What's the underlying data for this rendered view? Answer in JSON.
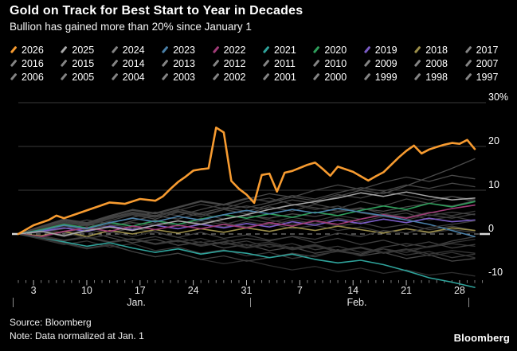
{
  "header": {
    "title": "Gold on Track for Best Start to Year in Decades",
    "subtitle": "Bullion has gained more than 20% since January 1"
  },
  "footer": {
    "source": "Source: Bloomberg",
    "note": "Note: Data normalized at Jan. 1",
    "brand": "Bloomberg"
  },
  "colors": {
    "background": "#000000",
    "text": "#ffffff",
    "grid": "#3a3a3a",
    "zero_line": "#999999",
    "axis_tick_minor": "#7d7d7d",
    "axis_tick_major": "#b5b5b5",
    "highlight": "#F79B30"
  },
  "legend": {
    "items": [
      {
        "label": "2026",
        "marker_color": "#F79B30"
      },
      {
        "label": "2025",
        "marker_color": "#A9A9A9"
      },
      {
        "label": "2024",
        "marker_color": "#848484"
      },
      {
        "label": "2023",
        "marker_color": "#4A80A8"
      },
      {
        "label": "2022",
        "marker_color": "#A13C78"
      },
      {
        "label": "2021",
        "marker_color": "#2FA39B"
      },
      {
        "label": "2020",
        "marker_color": "#2E9E5B"
      },
      {
        "label": "2019",
        "marker_color": "#7A5CC5"
      },
      {
        "label": "2018",
        "marker_color": "#9C8F4A"
      },
      {
        "label": "2017",
        "marker_color": "#848484"
      },
      {
        "label": "2016",
        "marker_color": "#848484"
      },
      {
        "label": "2015",
        "marker_color": "#848484"
      },
      {
        "label": "2014",
        "marker_color": "#848484"
      },
      {
        "label": "2013",
        "marker_color": "#848484"
      },
      {
        "label": "2012",
        "marker_color": "#848484"
      },
      {
        "label": "2011",
        "marker_color": "#848484"
      },
      {
        "label": "2010",
        "marker_color": "#848484"
      },
      {
        "label": "2009",
        "marker_color": "#848484"
      },
      {
        "label": "2008",
        "marker_color": "#848484"
      },
      {
        "label": "2007",
        "marker_color": "#848484"
      },
      {
        "label": "2006",
        "marker_color": "#848484"
      },
      {
        "label": "2005",
        "marker_color": "#848484"
      },
      {
        "label": "2004",
        "marker_color": "#848484"
      },
      {
        "label": "2003",
        "marker_color": "#848484"
      },
      {
        "label": "2002",
        "marker_color": "#848484"
      },
      {
        "label": "2001",
        "marker_color": "#848484"
      },
      {
        "label": "2000",
        "marker_color": "#848484"
      },
      {
        "label": "1999",
        "marker_color": "#848484"
      },
      {
        "label": "1998",
        "marker_color": "#848484"
      },
      {
        "label": "1997",
        "marker_color": "#848484"
      }
    ]
  },
  "chart_data": {
    "type": "line",
    "title": "Gold price change since Jan. 1, by year",
    "xlabel": "",
    "ylabel": "%",
    "note": "Data normalized at Jan. 1",
    "grid": true,
    "legend_position": "top",
    "y_axis": {
      "unit": "%",
      "range": [
        -13,
        30
      ],
      "ticks": [
        {
          "value": 30,
          "label": "30%"
        },
        {
          "value": 20,
          "label": "20"
        },
        {
          "value": 10,
          "label": "10"
        },
        {
          "value": 0,
          "label": "0"
        },
        {
          "value": -10,
          "label": "-10"
        }
      ]
    },
    "x_axis": {
      "unit": "day-of-year",
      "day_min": 1,
      "day_max": 61,
      "major_tick_days": [
        3,
        10,
        17,
        24,
        31,
        38,
        45,
        52,
        59
      ],
      "tick_labels": [
        "3",
        "10",
        "17",
        "24",
        "31",
        "7",
        "14",
        "21",
        "28"
      ],
      "month_labels": [
        {
          "label": "Jan.",
          "center_day": 16.5
        },
        {
          "label": "Feb.",
          "center_day": 45.5
        }
      ],
      "separator_days": [
        0.3,
        31.5,
        60.2
      ]
    },
    "x_default": [
      1,
      4,
      7,
      10,
      13,
      16,
      19,
      22,
      25,
      28,
      31,
      34,
      37,
      40,
      43,
      46,
      49,
      52,
      55,
      58,
      61
    ],
    "series": [
      {
        "name": "2026",
        "color": "#F79B30",
        "width": 2.6,
        "x": [
          1,
          3,
          5,
          6,
          7,
          9,
          11,
          13,
          15,
          17,
          19,
          20,
          21,
          22,
          23,
          24,
          25,
          26,
          27,
          28,
          29,
          30,
          31,
          32,
          33,
          34,
          35,
          36,
          37,
          39,
          40,
          41,
          42,
          43,
          45,
          47,
          48,
          49,
          51,
          52,
          53,
          54,
          55,
          56,
          57,
          58,
          59,
          60,
          61
        ],
        "values": [
          0,
          2.0,
          3.2,
          4.2,
          3.6,
          4.8,
          6.0,
          7.2,
          6.9,
          8.0,
          7.6,
          8.6,
          10.3,
          11.9,
          13.1,
          14.5,
          14.8,
          15.0,
          24.3,
          23.2,
          12.1,
          10.3,
          9.0,
          7.1,
          13.5,
          13.8,
          9.7,
          14.0,
          14.4,
          15.8,
          16.3,
          14.9,
          13.3,
          15.4,
          14.2,
          12.2,
          13.2,
          14.1,
          17.5,
          19.0,
          20.2,
          18.4,
          19.3,
          19.9,
          20.4,
          20.8,
          20.6,
          21.5,
          19.4
        ]
      },
      {
        "name": "2025",
        "color": "#A9A9A9",
        "width": 1.5,
        "values": [
          0,
          0.6,
          -0.4,
          0.8,
          1.6,
          0.8,
          2.0,
          3.0,
          2.2,
          3.4,
          4.4,
          5.6,
          6.6,
          7.4,
          8.2,
          9.4,
          8.6,
          9.6,
          8.6,
          7.8,
          8.2
        ]
      },
      {
        "name": "2024",
        "color": "#3f3f3f",
        "width": 1.3,
        "values": [
          0,
          -0.8,
          -1.5,
          -0.7,
          -1.8,
          -1.2,
          -2.2,
          -1.5,
          -2.5,
          -1.8,
          -1.0,
          -1.6,
          -0.5,
          -1.2,
          0.2,
          -0.6,
          0.8,
          0.2,
          1.5,
          2.2,
          3.0
        ]
      },
      {
        "name": "2023",
        "color": "#4A80A8",
        "width": 1.6,
        "values": [
          0,
          0.8,
          2.0,
          1.2,
          2.6,
          3.6,
          2.8,
          4.0,
          3.2,
          4.4,
          5.4,
          4.6,
          5.6,
          4.8,
          5.8,
          5.0,
          4.2,
          3.2,
          2.2,
          0.8,
          -0.6
        ]
      },
      {
        "name": "2022",
        "color": "#A13C78",
        "width": 1.6,
        "values": [
          0,
          -0.6,
          0.6,
          1.4,
          0.6,
          1.8,
          1.0,
          2.0,
          1.2,
          2.2,
          1.4,
          2.6,
          1.8,
          3.0,
          2.2,
          3.4,
          4.4,
          3.6,
          4.8,
          5.8,
          6.6
        ]
      },
      {
        "name": "2021",
        "color": "#2FA39B",
        "width": 1.6,
        "values": [
          0,
          -0.8,
          -1.8,
          -2.8,
          -2.0,
          -3.2,
          -4.2,
          -3.4,
          -4.6,
          -3.8,
          -4.4,
          -5.4,
          -4.6,
          -5.8,
          -6.6,
          -6.0,
          -7.0,
          -8.4,
          -10.0,
          -11.0,
          -12.2
        ]
      },
      {
        "name": "2020",
        "color": "#2E9E5B",
        "width": 1.6,
        "values": [
          0,
          1.0,
          2.2,
          1.4,
          2.6,
          1.8,
          3.0,
          2.2,
          3.4,
          4.4,
          3.6,
          4.6,
          3.8,
          5.0,
          4.2,
          5.4,
          6.4,
          5.6,
          7.0,
          6.2,
          7.4
        ]
      },
      {
        "name": "2019",
        "color": "#7A5CC5",
        "width": 1.6,
        "values": [
          0,
          0.6,
          1.4,
          0.6,
          1.8,
          1.0,
          2.0,
          1.2,
          2.2,
          1.4,
          2.4,
          1.6,
          2.8,
          2.0,
          3.2,
          2.4,
          3.4,
          2.6,
          3.6,
          2.8,
          3.2
        ]
      },
      {
        "name": "2018",
        "color": "#9C8F4A",
        "width": 1.6,
        "values": [
          0,
          -0.4,
          0.6,
          -0.6,
          0.8,
          0.0,
          1.0,
          0.2,
          1.2,
          0.4,
          1.4,
          0.6,
          1.6,
          0.8,
          1.8,
          1.0,
          0.2,
          1.2,
          0.4,
          1.4,
          0.8
        ]
      },
      {
        "name": "2017",
        "color": "#474747",
        "width": 1.3,
        "values": [
          0,
          0.7,
          1.4,
          0.8,
          1.8,
          2.6,
          2.0,
          3.0,
          2.4,
          3.4,
          4.2,
          3.6,
          4.6,
          4.0,
          5.0,
          5.8,
          5.2,
          6.2,
          7.0,
          6.4,
          7.6
        ]
      },
      {
        "name": "2016",
        "color": "#4a4a4a",
        "width": 1.3,
        "values": [
          0,
          0.4,
          1.2,
          2.2,
          1.6,
          3.0,
          4.2,
          3.4,
          4.8,
          6.0,
          5.2,
          6.6,
          7.8,
          7.0,
          8.6,
          10.0,
          9.2,
          11.0,
          13.0,
          15.0,
          17.2
        ]
      },
      {
        "name": "2015",
        "color": "#3c3c3c",
        "width": 1.3,
        "values": [
          0,
          1.2,
          2.6,
          1.8,
          3.4,
          4.6,
          3.8,
          5.4,
          6.8,
          5.8,
          7.4,
          8.2,
          6.8,
          5.6,
          6.4,
          4.8,
          4.0,
          4.8,
          3.2,
          4.0,
          3.0
        ]
      },
      {
        "name": "2014",
        "color": "#444444",
        "width": 1.3,
        "values": [
          0,
          0.8,
          2.0,
          3.2,
          2.4,
          3.8,
          5.0,
          4.2,
          5.6,
          6.8,
          6.0,
          7.2,
          8.4,
          7.6,
          9.0,
          8.2,
          9.6,
          8.8,
          7.8,
          8.6,
          7.4
        ]
      },
      {
        "name": "2013",
        "color": "#383838",
        "width": 1.3,
        "values": [
          0,
          -0.6,
          0.4,
          -1.0,
          -0.2,
          -1.4,
          -0.6,
          -1.8,
          -1.0,
          -2.4,
          -1.6,
          -3.0,
          -2.2,
          -3.6,
          -2.8,
          -4.2,
          -3.4,
          -4.8,
          -4.0,
          -5.4,
          -4.6
        ]
      },
      {
        "name": "2012",
        "color": "#424242",
        "width": 1.3,
        "values": [
          0,
          1.4,
          2.8,
          2.0,
          3.6,
          4.8,
          4.0,
          5.2,
          4.4,
          5.6,
          6.4,
          5.6,
          6.8,
          6.0,
          5.2,
          6.0,
          4.6,
          5.4,
          4.2,
          5.0,
          4.4
        ]
      },
      {
        "name": "2011",
        "color": "#363636",
        "width": 1.3,
        "values": [
          0,
          -1.2,
          -2.4,
          -1.6,
          -3.0,
          -2.2,
          -3.8,
          -3.0,
          -4.4,
          -3.6,
          -5.0,
          -4.2,
          -5.6,
          -4.8,
          -4.0,
          -4.8,
          -3.4,
          -4.2,
          -2.8,
          -2.0,
          -1.2
        ]
      },
      {
        "name": "2010",
        "color": "#404040",
        "width": 1.3,
        "values": [
          0,
          -0.8,
          -2.0,
          -3.2,
          -2.4,
          -4.0,
          -5.2,
          -4.4,
          -5.8,
          -5.0,
          -6.2,
          -5.4,
          -4.4,
          -5.2,
          -3.8,
          -4.6,
          -3.0,
          -2.2,
          -3.0,
          -1.6,
          -0.6
        ]
      },
      {
        "name": "2009",
        "color": "#484848",
        "width": 1.3,
        "values": [
          0,
          1.6,
          3.2,
          2.4,
          4.0,
          5.4,
          4.6,
          6.0,
          7.4,
          6.6,
          8.0,
          9.2,
          8.4,
          10.0,
          11.2,
          10.2,
          11.8,
          13.0,
          12.0,
          13.4,
          12.6
        ]
      },
      {
        "name": "2008",
        "color": "#454545",
        "width": 1.3,
        "values": [
          0,
          1.8,
          3.4,
          2.6,
          4.2,
          5.6,
          4.8,
          6.2,
          7.6,
          6.8,
          8.2,
          7.4,
          8.8,
          8.0,
          9.4,
          10.6,
          9.8,
          11.2,
          10.4,
          11.6,
          10.8
        ]
      },
      {
        "name": "2007",
        "color": "#3a3a3a",
        "width": 1.3,
        "values": [
          0,
          0.6,
          -0.4,
          0.8,
          1.6,
          0.8,
          2.0,
          1.2,
          2.4,
          1.6,
          2.8,
          2.0,
          3.2,
          2.4,
          3.6,
          2.8,
          4.0,
          3.2,
          4.4,
          3.6,
          4.6
        ]
      },
      {
        "name": "2006",
        "color": "#434343",
        "width": 1.3,
        "values": [
          0,
          1.0,
          2.4,
          1.4,
          3.0,
          4.4,
          3.4,
          5.0,
          4.0,
          5.6,
          4.6,
          6.2,
          5.2,
          6.8,
          5.8,
          7.4,
          6.4,
          8.0,
          7.0,
          8.6,
          7.8
        ]
      },
      {
        "name": "2005",
        "color": "#373737",
        "width": 1.3,
        "values": [
          0,
          -0.4,
          -1.4,
          -0.6,
          -1.8,
          -1.0,
          -2.2,
          -1.4,
          -2.6,
          -1.8,
          -3.0,
          -2.2,
          -3.4,
          -2.6,
          -3.8,
          -3.0,
          -4.2,
          -3.4,
          -4.6,
          -3.8,
          -4.4
        ]
      },
      {
        "name": "2004",
        "color": "#3e3e3e",
        "width": 1.3,
        "values": [
          0,
          0.8,
          -0.2,
          1.0,
          0.2,
          1.4,
          0.4,
          -0.8,
          0.4,
          -1.0,
          -0.2,
          -1.4,
          -0.6,
          -2.0,
          -1.0,
          -2.4,
          -1.4,
          -2.8,
          -1.8,
          -3.2,
          -2.4
        ]
      },
      {
        "name": "2003",
        "color": "#414141",
        "width": 1.3,
        "values": [
          0,
          1.6,
          3.0,
          2.2,
          3.8,
          5.0,
          4.2,
          5.6,
          4.6,
          3.4,
          4.4,
          3.2,
          2.2,
          3.0,
          1.8,
          2.6,
          1.4,
          2.2,
          1.0,
          1.8,
          0.8
        ]
      },
      {
        "name": "2002",
        "color": "#393939",
        "width": 1.3,
        "values": [
          0,
          0.8,
          1.8,
          1.0,
          2.2,
          1.4,
          2.6,
          1.8,
          3.0,
          2.2,
          3.4,
          2.6,
          3.8,
          3.0,
          4.2,
          3.4,
          4.6,
          3.8,
          5.0,
          4.2,
          5.2
        ]
      },
      {
        "name": "2001",
        "color": "#353535",
        "width": 1.3,
        "values": [
          0,
          -0.6,
          -1.6,
          -0.8,
          -2.0,
          -1.2,
          -2.4,
          -1.6,
          -2.8,
          -2.0,
          -3.2,
          -2.4,
          -3.6,
          -2.8,
          -4.0,
          -3.2,
          -4.4,
          -3.6,
          -3.0,
          -2.2,
          -2.8
        ]
      },
      {
        "name": "2000",
        "color": "#323232",
        "width": 1.3,
        "values": [
          0,
          1.2,
          0.2,
          1.6,
          0.6,
          -0.6,
          0.6,
          -0.8,
          -2.0,
          -1.2,
          -2.6,
          -1.8,
          -3.2,
          -2.4,
          -3.8,
          -3.0,
          -4.4,
          -3.6,
          -5.0,
          -4.2,
          -5.4
        ]
      },
      {
        "name": "1999",
        "color": "#474747",
        "width": 1.3,
        "values": [
          0,
          0.6,
          -0.6,
          0.6,
          -0.8,
          -2.0,
          -1.2,
          -2.6,
          -1.8,
          -3.2,
          -2.4,
          -3.8,
          -3.0,
          -4.4,
          -3.6,
          -5.0,
          -4.2,
          -5.6,
          -4.8,
          -6.2,
          -5.6
        ]
      },
      {
        "name": "1998",
        "color": "#3b3b3b",
        "width": 1.3,
        "values": [
          0,
          1.0,
          2.2,
          1.2,
          2.8,
          1.8,
          3.2,
          2.2,
          3.6,
          2.6,
          1.6,
          2.4,
          1.2,
          2.0,
          0.8,
          1.6,
          0.4,
          1.2,
          0.2,
          1.0,
          0.4
        ]
      },
      {
        "name": "1997",
        "color": "#2f2f2f",
        "width": 1.3,
        "values": [
          0,
          -1.0,
          -2.2,
          -3.4,
          -2.6,
          -4.0,
          -5.2,
          -4.4,
          -5.8,
          -6.8,
          -6.0,
          -7.2,
          -8.2,
          -7.4,
          -8.6,
          -7.8,
          -9.0,
          -8.2,
          -9.4,
          -8.8,
          -9.6
        ]
      }
    ]
  }
}
